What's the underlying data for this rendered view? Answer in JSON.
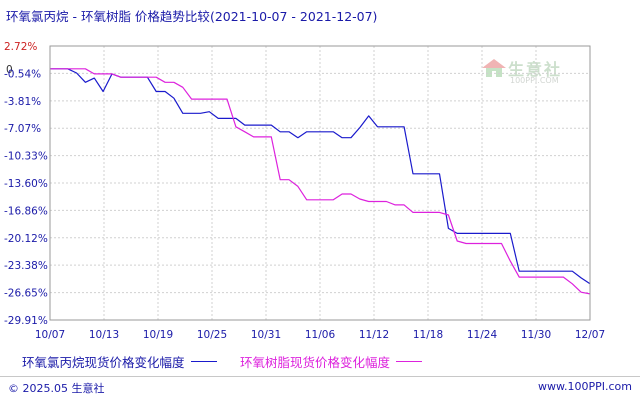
{
  "header": {
    "title": "环氧氯丙烷 - 环氧树脂 价格趋势比较",
    "date_range": "(2021-10-07 - 2021-12-07)"
  },
  "watermark": {
    "name": "生意社",
    "url": "100PPI.COM"
  },
  "footer": {
    "left": "© 2025.05 生意社",
    "right": "www.100PPI.com"
  },
  "colors": {
    "series1": "#1a1acc",
    "series2": "#dd22dd",
    "zero_tick": "#333333",
    "pos_tick": "#cc2222",
    "neg_tick": "#1a1aa8",
    "grid": "#d0d0d0"
  },
  "chart_data": {
    "type": "line",
    "title": "环氧氯丙烷 - 环氧树脂 价格趋势比较",
    "subtitle": "(2021-10-07 - 2021-12-07)",
    "y_ticks": [
      "2.72%",
      "0",
      "-0.54%",
      "-3.81%",
      "-7.07%",
      "-10.33%",
      "-13.60%",
      "-16.86%",
      "-20.12%",
      "-23.38%",
      "-26.65%",
      "-29.91%"
    ],
    "ylim": [
      -29.91,
      2.72
    ],
    "x_ticks": [
      "10/07",
      "10/13",
      "10/19",
      "10/25",
      "10/31",
      "11/06",
      "11/12",
      "11/18",
      "11/24",
      "11/30",
      "12/07"
    ],
    "grid": true,
    "legend_position": "bottom",
    "series": [
      {
        "name": "环氧氯丙烷现货价格变化幅度",
        "color": "#1a1acc",
        "points": [
          [
            "2021-10-07",
            0
          ],
          [
            "2021-10-09",
            0
          ],
          [
            "2021-10-10",
            -0.5
          ],
          [
            "2021-10-11",
            -1.6
          ],
          [
            "2021-10-12",
            -1.1
          ],
          [
            "2021-10-13",
            -2.7
          ],
          [
            "2021-10-14",
            -0.6
          ],
          [
            "2021-10-15",
            -1.0
          ],
          [
            "2021-10-18",
            -1.0
          ],
          [
            "2021-10-19",
            -2.7
          ],
          [
            "2021-10-20",
            -2.7
          ],
          [
            "2021-10-21",
            -3.5
          ],
          [
            "2021-10-22",
            -5.3
          ],
          [
            "2021-10-24",
            -5.3
          ],
          [
            "2021-10-25",
            -5.1
          ],
          [
            "2021-10-26",
            -5.9
          ],
          [
            "2021-10-28",
            -5.9
          ],
          [
            "2021-10-29",
            -6.7
          ],
          [
            "2021-11-01",
            -6.7
          ],
          [
            "2021-11-02",
            -7.5
          ],
          [
            "2021-11-03",
            -7.5
          ],
          [
            "2021-11-04",
            -8.2
          ],
          [
            "2021-11-05",
            -7.5
          ],
          [
            "2021-11-08",
            -7.5
          ],
          [
            "2021-11-09",
            -8.2
          ],
          [
            "2021-11-10",
            -8.2
          ],
          [
            "2021-11-11",
            -7.0
          ],
          [
            "2021-11-12",
            -5.6
          ],
          [
            "2021-11-13",
            -6.9
          ],
          [
            "2021-11-16",
            -6.9
          ],
          [
            "2021-11-17",
            -12.5
          ],
          [
            "2021-11-20",
            -12.5
          ],
          [
            "2021-11-21",
            -19.0
          ],
          [
            "2021-11-22",
            -19.6
          ],
          [
            "2021-11-28",
            -19.6
          ],
          [
            "2021-11-29",
            -24.1
          ],
          [
            "2021-12-05",
            -24.1
          ],
          [
            "2021-12-06",
            -24.9
          ],
          [
            "2021-12-07",
            -25.6
          ]
        ]
      },
      {
        "name": "环氧树脂现货价格变化幅度",
        "color": "#dd22dd",
        "points": [
          [
            "2021-10-07",
            0
          ],
          [
            "2021-10-11",
            0
          ],
          [
            "2021-10-12",
            -0.6
          ],
          [
            "2021-10-14",
            -0.6
          ],
          [
            "2021-10-15",
            -1.0
          ],
          [
            "2021-10-19",
            -1.0
          ],
          [
            "2021-10-20",
            -1.6
          ],
          [
            "2021-10-21",
            -1.6
          ],
          [
            "2021-10-22",
            -2.2
          ],
          [
            "2021-10-23",
            -3.6
          ],
          [
            "2021-10-27",
            -3.6
          ],
          [
            "2021-10-28",
            -6.9
          ],
          [
            "2021-10-29",
            -7.5
          ],
          [
            "2021-10-30",
            -8.1
          ],
          [
            "2021-11-01",
            -8.1
          ],
          [
            "2021-11-02",
            -13.2
          ],
          [
            "2021-11-03",
            -13.2
          ],
          [
            "2021-11-04",
            -14.0
          ],
          [
            "2021-11-05",
            -15.6
          ],
          [
            "2021-11-08",
            -15.6
          ],
          [
            "2021-11-09",
            -14.9
          ],
          [
            "2021-11-10",
            -14.9
          ],
          [
            "2021-11-11",
            -15.5
          ],
          [
            "2021-11-12",
            -15.8
          ],
          [
            "2021-11-14",
            -15.8
          ],
          [
            "2021-11-15",
            -16.2
          ],
          [
            "2021-11-16",
            -16.2
          ],
          [
            "2021-11-17",
            -17.1
          ],
          [
            "2021-11-20",
            -17.1
          ],
          [
            "2021-11-21",
            -17.4
          ],
          [
            "2021-11-22",
            -20.5
          ],
          [
            "2021-11-23",
            -20.8
          ],
          [
            "2021-11-27",
            -20.8
          ],
          [
            "2021-11-28",
            -22.9
          ],
          [
            "2021-11-29",
            -24.8
          ],
          [
            "2021-12-04",
            -24.8
          ],
          [
            "2021-12-05",
            -25.6
          ],
          [
            "2021-12-06",
            -26.6
          ],
          [
            "2021-12-07",
            -26.8
          ]
        ]
      }
    ]
  }
}
